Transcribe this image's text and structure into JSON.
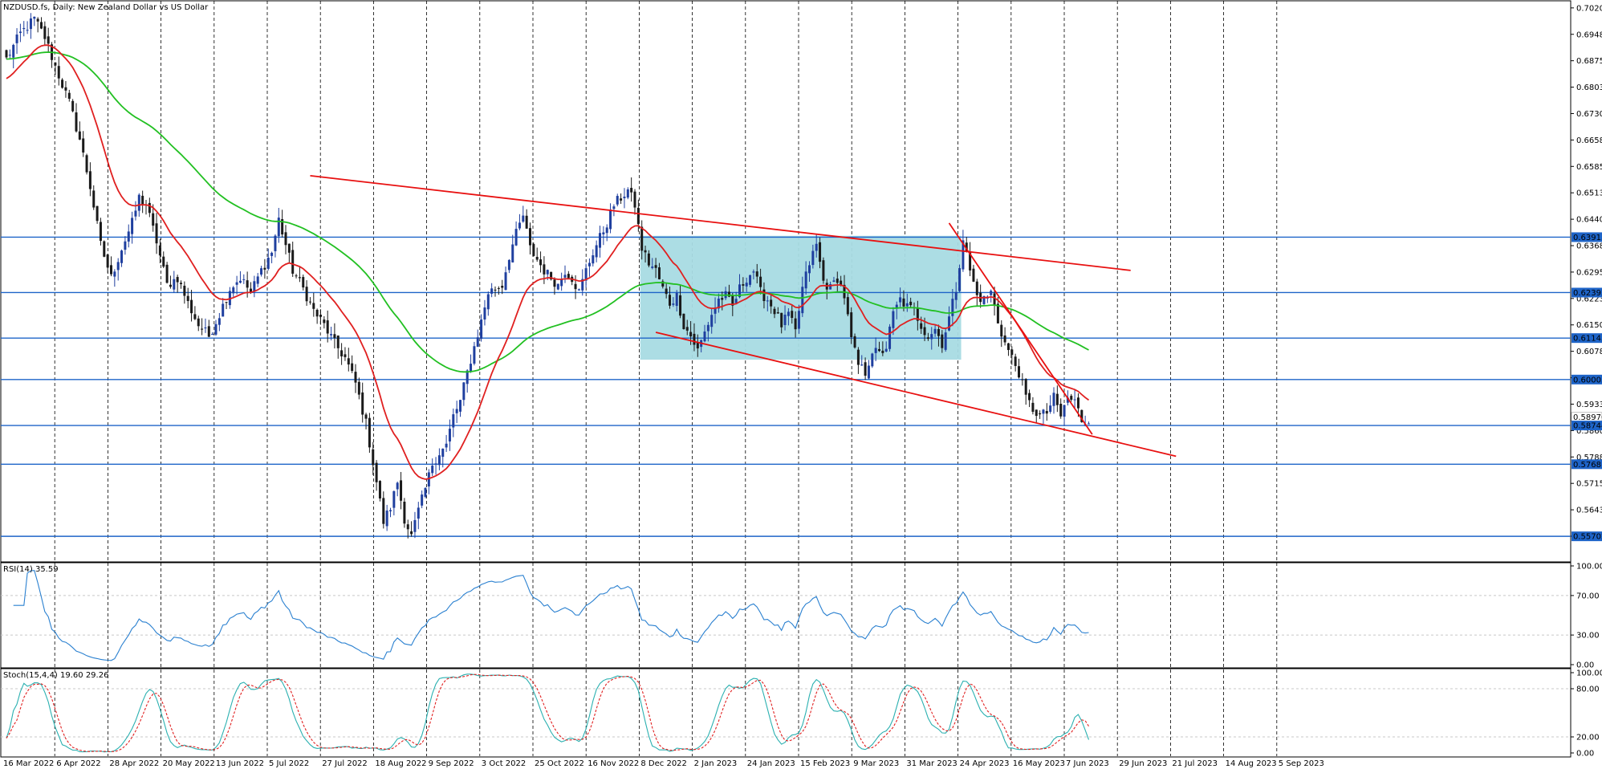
{
  "window": {
    "symbol_label": "NZDUSD.fs, Daily:  New Zealand Dollar vs US Dollar"
  },
  "colors": {
    "bull_candle": "#1f3f9f",
    "bear_candle": "#1a1a1a",
    "ma_fast": "#e02020",
    "ma_slow": "#22c022",
    "hline": "#1e64c8",
    "trend": "#e81010",
    "box": "#a8dbe3",
    "rsi_line": "#2a80d0",
    "stoch_main": "#2ab0b0",
    "stoch_signal": "#e02020",
    "grid": "#000000"
  },
  "chart_data": [
    {
      "type": "candlestick",
      "title": "NZDUSD.fs, Daily:  New Zealand Dollar vs US Dollar",
      "ylim": [
        0.55,
        0.704
      ],
      "price_ticks": [
        "0.70205",
        "0.69480",
        "0.68755",
        "0.68030",
        "0.67305",
        "0.66580",
        "0.65855",
        "0.65130",
        "0.64405",
        "0.63680",
        "0.62955",
        "0.62230",
        "0.61505",
        "0.60780",
        "0.60055",
        "0.59330",
        "0.58605",
        "0.57880",
        "0.57155",
        "0.56430",
        "0.55705"
      ],
      "date_labels": [
        "16 Mar 2022",
        "6 Apr 2022",
        "28 Apr 2022",
        "20 May 2022",
        "13 Jun 2022",
        "5 Jul 2022",
        "27 Jul 2022",
        "18 Aug 2022",
        "9 Sep 2022",
        "3 Oct 2022",
        "25 Oct 2022",
        "16 Nov 2022",
        "8 Dec 2022",
        "2 Jan 2023",
        "24 Jan 2023",
        "15 Feb 2023",
        "9 Mar 2023",
        "31 Mar 2023",
        "24 Apr 2023",
        "16 May 2023",
        "7 Jun 2023",
        "29 Jun 2023",
        "21 Jul 2023",
        "14 Aug 2023",
        "5 Sep 2023"
      ],
      "close_anchors": [
        [
          0,
          0.688
        ],
        [
          4,
          0.695
        ],
        [
          8,
          0.699
        ],
        [
          11,
          0.694
        ],
        [
          14,
          0.686
        ],
        [
          18,
          0.676
        ],
        [
          21,
          0.666
        ],
        [
          24,
          0.653
        ],
        [
          27,
          0.637
        ],
        [
          30,
          0.628
        ],
        [
          33,
          0.636
        ],
        [
          36,
          0.643
        ],
        [
          38,
          0.65
        ],
        [
          40,
          0.648
        ],
        [
          43,
          0.638
        ],
        [
          46,
          0.626
        ],
        [
          49,
          0.628
        ],
        [
          52,
          0.621
        ],
        [
          55,
          0.615
        ],
        [
          58,
          0.612
        ],
        [
          61,
          0.618
        ],
        [
          64,
          0.625
        ],
        [
          67,
          0.628
        ],
        [
          70,
          0.624
        ],
        [
          73,
          0.63
        ],
        [
          76,
          0.635
        ],
        [
          78,
          0.644
        ],
        [
          80,
          0.637
        ],
        [
          82,
          0.63
        ],
        [
          85,
          0.625
        ],
        [
          88,
          0.619
        ],
        [
          91,
          0.615
        ],
        [
          94,
          0.61
        ],
        [
          97,
          0.606
        ],
        [
          100,
          0.599
        ],
        [
          103,
          0.588
        ],
        [
          106,
          0.572
        ],
        [
          108,
          0.561
        ],
        [
          110,
          0.565
        ],
        [
          112,
          0.572
        ],
        [
          114,
          0.562
        ],
        [
          116,
          0.557
        ],
        [
          118,
          0.564
        ],
        [
          120,
          0.57
        ],
        [
          122,
          0.577
        ],
        [
          124,
          0.58
        ],
        [
          126,
          0.582
        ],
        [
          128,
          0.59
        ],
        [
          130,
          0.594
        ],
        [
          132,
          0.602
        ],
        [
          134,
          0.609
        ],
        [
          136,
          0.616
        ],
        [
          138,
          0.624
        ],
        [
          140,
          0.625
        ],
        [
          142,
          0.626
        ],
        [
          144,
          0.634
        ],
        [
          146,
          0.64
        ],
        [
          148,
          0.645
        ],
        [
          150,
          0.636
        ],
        [
          152,
          0.633
        ],
        [
          154,
          0.63
        ],
        [
          156,
          0.628
        ],
        [
          158,
          0.626
        ],
        [
          160,
          0.63
        ],
        [
          162,
          0.628
        ],
        [
          164,
          0.624
        ],
        [
          166,
          0.63
        ],
        [
          168,
          0.635
        ],
        [
          170,
          0.639
        ],
        [
          172,
          0.643
        ],
        [
          174,
          0.648
        ],
        [
          176,
          0.65
        ],
        [
          178,
          0.652
        ],
        [
          180,
          0.648
        ],
        [
          182,
          0.636
        ],
        [
          184,
          0.632
        ],
        [
          186,
          0.63
        ],
        [
          188,
          0.625
        ],
        [
          190,
          0.621
        ],
        [
          192,
          0.623
        ],
        [
          194,
          0.615
        ],
        [
          196,
          0.612
        ],
        [
          198,
          0.608
        ],
        [
          200,
          0.613
        ],
        [
          202,
          0.618
        ],
        [
          204,
          0.622
        ],
        [
          206,
          0.623
        ],
        [
          208,
          0.62
        ],
        [
          210,
          0.625
        ],
        [
          212,
          0.628
        ],
        [
          214,
          0.63
        ],
        [
          216,
          0.624
        ],
        [
          218,
          0.622
        ],
        [
          220,
          0.619
        ],
        [
          222,
          0.615
        ],
        [
          224,
          0.618
        ],
        [
          226,
          0.613
        ],
        [
          228,
          0.625
        ],
        [
          230,
          0.632
        ],
        [
          232,
          0.637
        ],
        [
          234,
          0.627
        ],
        [
          236,
          0.625
        ],
        [
          238,
          0.628
        ],
        [
          240,
          0.623
        ],
        [
          242,
          0.611
        ],
        [
          244,
          0.604
        ],
        [
          246,
          0.602
        ],
        [
          248,
          0.608
        ],
        [
          250,
          0.607
        ],
        [
          252,
          0.609
        ],
        [
          254,
          0.618
        ],
        [
          256,
          0.622
        ],
        [
          258,
          0.62
        ],
        [
          260,
          0.619
        ],
        [
          262,
          0.615
        ],
        [
          264,
          0.612
        ],
        [
          266,
          0.614
        ],
        [
          268,
          0.61
        ],
        [
          270,
          0.617
        ],
        [
          272,
          0.625
        ],
        [
          274,
          0.639
        ],
        [
          276,
          0.63
        ],
        [
          278,
          0.623
        ],
        [
          280,
          0.622
        ],
        [
          282,
          0.624
        ],
        [
          284,
          0.616
        ],
        [
          286,
          0.61
        ],
        [
          288,
          0.606
        ],
        [
          290,
          0.602
        ],
        [
          292,
          0.595
        ],
        [
          294,
          0.592
        ],
        [
          296,
          0.59
        ],
        [
          298,
          0.591
        ],
        [
          300,
          0.595
        ],
        [
          302,
          0.59
        ],
        [
          304,
          0.595
        ],
        [
          306,
          0.594
        ],
        [
          308,
          0.589
        ],
        [
          310,
          0.588
        ]
      ],
      "horizontal_levels": [
        {
          "value": 0.63913,
          "label": "0.63913"
        },
        {
          "value": 0.62392,
          "label": "0.62392"
        },
        {
          "value": 0.61143,
          "label": "0.61143"
        },
        {
          "value": 0.60005,
          "label": "0.60005"
        },
        {
          "value": 0.58744,
          "label": "0.58744"
        },
        {
          "value": 0.57681,
          "label": "0.57681"
        },
        {
          "value": 0.55702,
          "label": "0.55702"
        }
      ],
      "overlapping_tag_fragment": "0.58970",
      "shaded_range": {
        "bar_from": 182,
        "bar_to": 273,
        "y_top": 0.6395,
        "y_bottom": 0.6055
      },
      "trendlines": [
        {
          "from": [
            87,
            0.656
          ],
          "to": [
            322,
            0.63
          ]
        },
        {
          "from": [
            186,
            0.613
          ],
          "to": [
            335,
            0.579
          ]
        },
        {
          "from": [
            270,
            0.643
          ],
          "to": [
            311,
            0.585
          ]
        }
      ]
    },
    {
      "type": "line",
      "title": "RSI(14) 35.59",
      "ylim": [
        0,
        100
      ],
      "ticks": [
        "100.00",
        "70.00",
        "30.00",
        "0.00"
      ],
      "levels": [
        70,
        30
      ]
    },
    {
      "type": "line",
      "title": "Stoch(15,4,4) 19.60 29.26",
      "ylim": [
        0,
        100
      ],
      "ticks": [
        "100.00",
        "80.00",
        "20.00",
        "0.00"
      ],
      "levels": [
        80,
        20
      ]
    }
  ]
}
